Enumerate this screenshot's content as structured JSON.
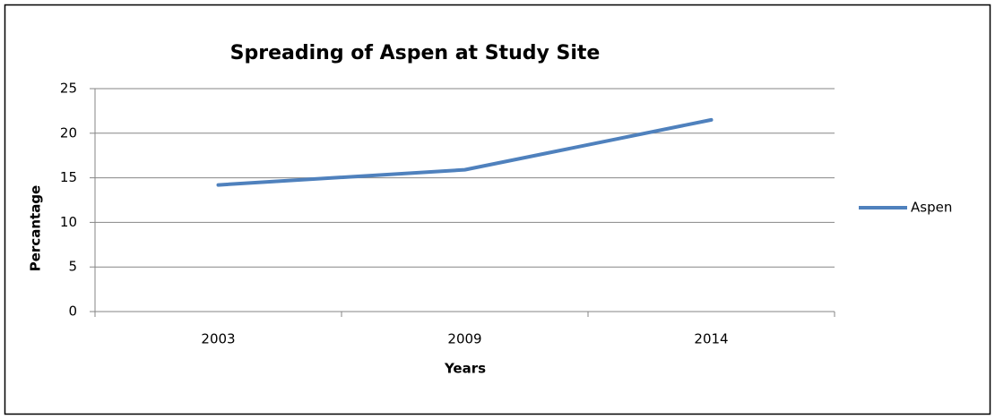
{
  "chart_data": {
    "type": "line",
    "title": "Spreading of Aspen at Study Site",
    "x_label": "Years",
    "y_label": "Percantage",
    "categories": [
      "2003",
      "2009",
      "2014"
    ],
    "series": [
      {
        "name": "Aspen",
        "color": "#4f81bd",
        "values": [
          14.2,
          15.9,
          21.5
        ]
      }
    ],
    "ylim": [
      0,
      25
    ],
    "yticks": [
      0,
      5,
      10,
      15,
      20,
      25
    ],
    "grid": true,
    "legend": "right"
  }
}
